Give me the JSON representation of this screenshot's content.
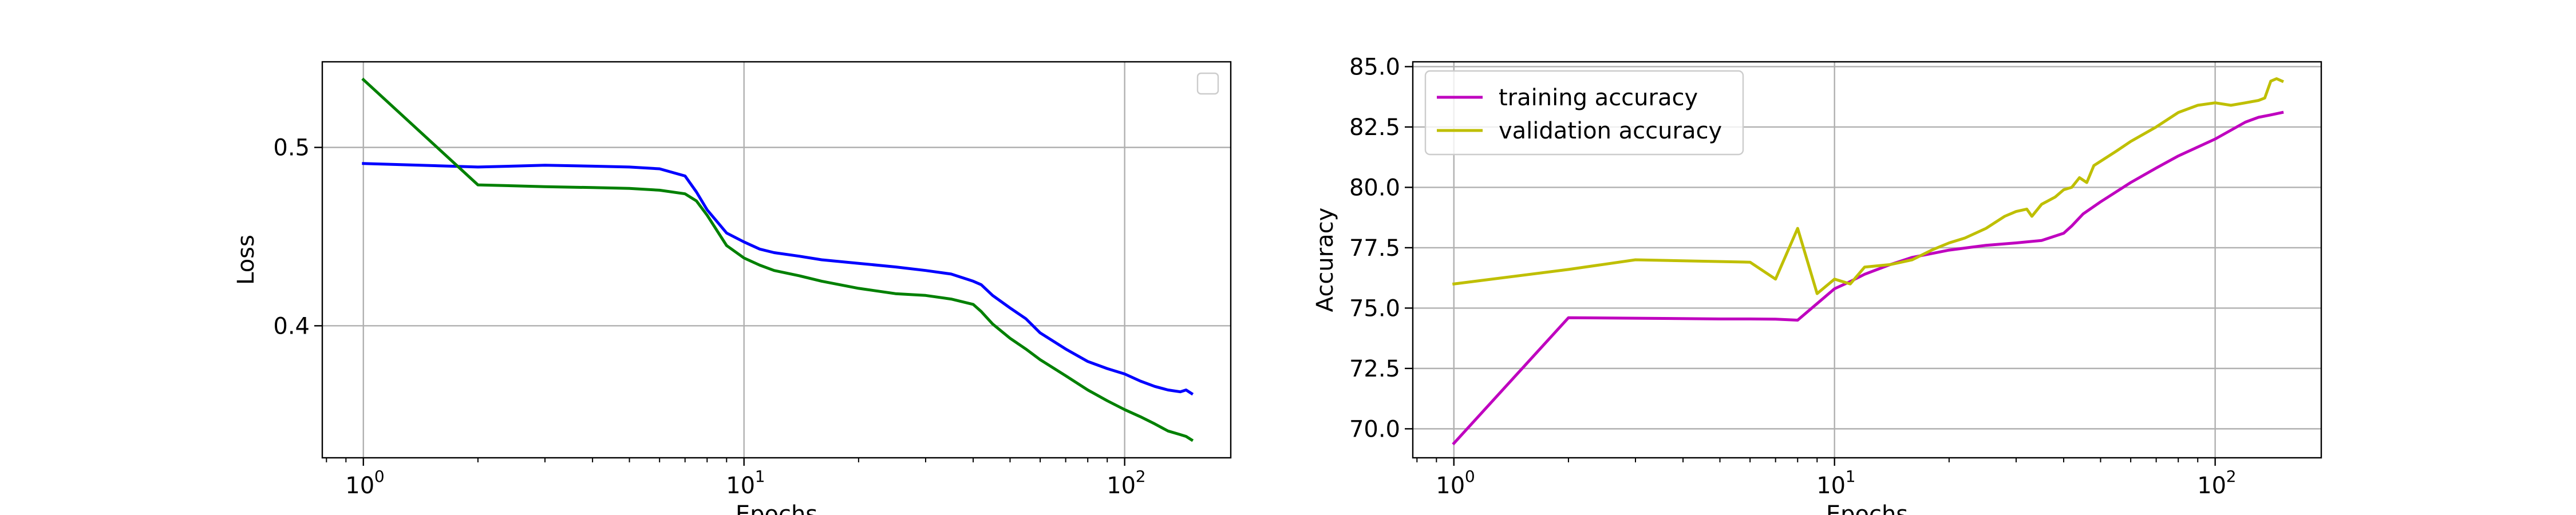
{
  "chart_data": [
    {
      "type": "line",
      "xscale": "log",
      "xlabel": "Epochs",
      "ylabel": "Loss",
      "xlim": [
        0.78,
        190
      ],
      "ylim": [
        0.326,
        0.548
      ],
      "xticks": [
        1,
        10,
        100
      ],
      "xtick_labels": [
        "10",
        "10",
        "10"
      ],
      "xtick_exponents": [
        "0",
        "1",
        "2"
      ],
      "yticks": [
        0.4,
        0.5
      ],
      "ytick_labels": [
        "0.4",
        "0.5"
      ],
      "grid": true,
      "legend": {
        "placement": "upper right",
        "entries": []
      },
      "series": [
        {
          "color": "#0000ff",
          "points": [
            [
              1,
              0.491
            ],
            [
              2,
              0.489
            ],
            [
              3,
              0.49
            ],
            [
              4,
              0.4895
            ],
            [
              5,
              0.489
            ],
            [
              6,
              0.488
            ],
            [
              7,
              0.484
            ],
            [
              7.5,
              0.475
            ],
            [
              8,
              0.465
            ],
            [
              9,
              0.452
            ],
            [
              10,
              0.447
            ],
            [
              11,
              0.443
            ],
            [
              12,
              0.441
            ],
            [
              14,
              0.439
            ],
            [
              16,
              0.437
            ],
            [
              20,
              0.435
            ],
            [
              25,
              0.433
            ],
            [
              30,
              0.431
            ],
            [
              35,
              0.429
            ],
            [
              40,
              0.425
            ],
            [
              42,
              0.423
            ],
            [
              45,
              0.417
            ],
            [
              50,
              0.41
            ],
            [
              55,
              0.404
            ],
            [
              60,
              0.396
            ],
            [
              70,
              0.387
            ],
            [
              80,
              0.38
            ],
            [
              90,
              0.376
            ],
            [
              100,
              0.373
            ],
            [
              110,
              0.369
            ],
            [
              120,
              0.366
            ],
            [
              130,
              0.364
            ],
            [
              140,
              0.363
            ],
            [
              145,
              0.364
            ],
            [
              150,
              0.362
            ]
          ]
        },
        {
          "color": "#008000",
          "points": [
            [
              1,
              0.538
            ],
            [
              2,
              0.479
            ],
            [
              3,
              0.478
            ],
            [
              4,
              0.4775
            ],
            [
              5,
              0.477
            ],
            [
              6,
              0.476
            ],
            [
              7,
              0.474
            ],
            [
              7.5,
              0.47
            ],
            [
              8,
              0.462
            ],
            [
              9,
              0.445
            ],
            [
              10,
              0.438
            ],
            [
              11,
              0.434
            ],
            [
              12,
              0.431
            ],
            [
              14,
              0.428
            ],
            [
              16,
              0.425
            ],
            [
              20,
              0.421
            ],
            [
              25,
              0.418
            ],
            [
              30,
              0.417
            ],
            [
              35,
              0.415
            ],
            [
              40,
              0.412
            ],
            [
              42,
              0.408
            ],
            [
              45,
              0.401
            ],
            [
              50,
              0.393
            ],
            [
              55,
              0.387
            ],
            [
              60,
              0.381
            ],
            [
              70,
              0.372
            ],
            [
              80,
              0.364
            ],
            [
              90,
              0.358
            ],
            [
              100,
              0.353
            ],
            [
              110,
              0.349
            ],
            [
              120,
              0.345
            ],
            [
              130,
              0.341
            ],
            [
              140,
              0.339
            ],
            [
              145,
              0.338
            ],
            [
              150,
              0.336
            ]
          ]
        }
      ]
    },
    {
      "type": "line",
      "xscale": "log",
      "xlabel": "Epochs",
      "ylabel": "Accuracy",
      "xlim": [
        0.78,
        190
      ],
      "ylim": [
        68.8,
        85.2
      ],
      "xticks": [
        1,
        10,
        100
      ],
      "xtick_labels": [
        "10",
        "10",
        "10"
      ],
      "xtick_exponents": [
        "0",
        "1",
        "2"
      ],
      "yticks": [
        70,
        72.5,
        75,
        77.5,
        80,
        82.5,
        85
      ],
      "ytick_labels": [
        "70.0",
        "72.5",
        "75.0",
        "77.5",
        "80.0",
        "82.5",
        "85.0"
      ],
      "grid": true,
      "legend": {
        "placement": "upper left"
      },
      "series": [
        {
          "name": "training accuracy",
          "color": "#bf00bf",
          "points": [
            [
              1,
              69.4
            ],
            [
              2,
              74.6
            ],
            [
              3,
              74.58
            ],
            [
              5,
              74.55
            ],
            [
              6,
              74.55
            ],
            [
              7,
              74.54
            ],
            [
              8,
              74.5
            ],
            [
              10,
              75.8
            ],
            [
              11,
              76.1
            ],
            [
              12,
              76.4
            ],
            [
              14,
              76.8
            ],
            [
              16,
              77.1
            ],
            [
              20,
              77.4
            ],
            [
              25,
              77.6
            ],
            [
              30,
              77.7
            ],
            [
              35,
              77.8
            ],
            [
              40,
              78.1
            ],
            [
              42,
              78.4
            ],
            [
              45,
              78.9
            ],
            [
              50,
              79.4
            ],
            [
              60,
              80.2
            ],
            [
              70,
              80.8
            ],
            [
              80,
              81.3
            ],
            [
              100,
              82
            ],
            [
              120,
              82.7
            ],
            [
              130,
              82.9
            ],
            [
              140,
              83.0
            ],
            [
              150,
              83.1
            ]
          ]
        },
        {
          "name": "validation accuracy",
          "color": "#bfbf00",
          "points": [
            [
              1,
              76.0
            ],
            [
              2,
              76.6
            ],
            [
              3,
              77.0
            ],
            [
              6,
              76.9
            ],
            [
              7,
              76.2
            ],
            [
              8,
              78.3
            ],
            [
              9,
              75.6
            ],
            [
              10,
              76.2
            ],
            [
              11,
              76.0
            ],
            [
              12,
              76.7
            ],
            [
              14,
              76.8
            ],
            [
              16,
              77.0
            ],
            [
              18,
              77.4
            ],
            [
              20,
              77.7
            ],
            [
              22,
              77.9
            ],
            [
              25,
              78.3
            ],
            [
              28,
              78.8
            ],
            [
              30,
              79.0
            ],
            [
              32,
              79.1
            ],
            [
              33,
              78.8
            ],
            [
              35,
              79.3
            ],
            [
              38,
              79.6
            ],
            [
              40,
              79.9
            ],
            [
              42,
              80.0
            ],
            [
              44,
              80.4
            ],
            [
              46,
              80.2
            ],
            [
              48,
              80.9
            ],
            [
              55,
              81.5
            ],
            [
              60,
              81.9
            ],
            [
              70,
              82.5
            ],
            [
              80,
              83.1
            ],
            [
              90,
              83.4
            ],
            [
              100,
              83.5
            ],
            [
              110,
              83.4
            ],
            [
              120,
              83.5
            ],
            [
              130,
              83.6
            ],
            [
              135,
              83.7
            ],
            [
              140,
              84.4
            ],
            [
              145,
              84.5
            ],
            [
              150,
              84.4
            ]
          ]
        }
      ]
    }
  ]
}
